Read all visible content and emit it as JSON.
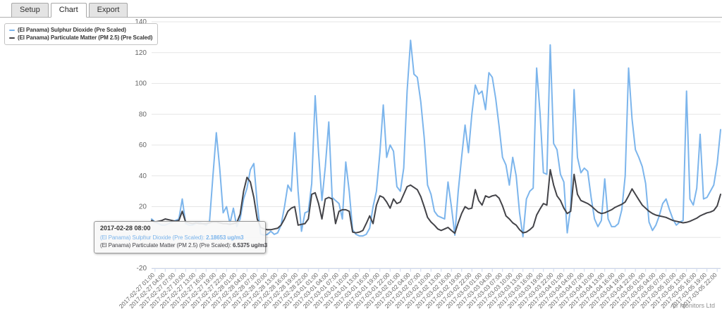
{
  "tabs": {
    "items": [
      {
        "label": "Setup",
        "active": false
      },
      {
        "label": "Chart",
        "active": true
      },
      {
        "label": "Export",
        "active": false
      }
    ]
  },
  "legend": {
    "items": [
      {
        "label": "(El Panama) Sulphur Dioxide (Pre Scaled)",
        "color": "#7cb5ec"
      },
      {
        "label": "(El Panama) Particulate Matter (PM 2.5) (Pre Scaled)",
        "color": "#434348"
      }
    ]
  },
  "tooltip": {
    "header": "2017-02-28 08:00",
    "rows": [
      {
        "label": "(El Panama) Sulphur Dioxide (Pre Scaled): ",
        "value": "2.18653 ug/m3",
        "color": "#7cb5ec"
      },
      {
        "label": "(El Panama) Particulate Matter (PM 2.5) (Pre Scaled): ",
        "value": "6.5375 ug/m3",
        "color": "#434348"
      }
    ]
  },
  "credits": {
    "text": "Air Monitors Ltd"
  },
  "chart_data": {
    "type": "line",
    "x_start": "2017-02-27 00:00",
    "x_interval_hours": 1,
    "ylim": [
      -20,
      140
    ],
    "ytick_step": 20,
    "grid": true,
    "legend_position": "top-left",
    "colors": {
      "gridline": "#e6e6e6",
      "axis_line": "#ccd6eb",
      "axis_label": "#666666"
    },
    "x_tick_labels": [
      "2017-02-27 01:00",
      "2017-02-27 04:00",
      "2017-02-27 07:00",
      "2017-02-27 10:00",
      "2017-02-27 13:00",
      "2017-02-27 16:00",
      "2017-02-27 19:00",
      "2017-02-27 22:00",
      "2017-02-28 01:00",
      "2017-02-28 04:00",
      "2017-02-28 07:00",
      "2017-02-28 10:00",
      "2017-02-28 13:00",
      "2017-02-28 16:00",
      "2017-02-28 19:00",
      "2017-02-28 22:00",
      "2017-03-01 01:00",
      "2017-03-01 04:00",
      "2017-03-01 07:00",
      "2017-03-01 10:00",
      "2017-03-01 13:00",
      "2017-03-01 16:00",
      "2017-03-01 19:00",
      "2017-03-01 22:00",
      "2017-03-02 01:00",
      "2017-03-02 04:00",
      "2017-03-02 07:00",
      "2017-03-02 10:00",
      "2017-03-02 13:00",
      "2017-03-02 16:00",
      "2017-03-02 19:00",
      "2017-03-02 22:00",
      "2017-03-03 01:00",
      "2017-03-03 04:00",
      "2017-03-03 07:00",
      "2017-03-03 10:00",
      "2017-03-03 13:00",
      "2017-03-03 16:00",
      "2017-03-03 19:00",
      "2017-03-03 22:00",
      "2017-03-04 01:00",
      "2017-03-04 04:00",
      "2017-03-04 07:00",
      "2017-03-04 10:00",
      "2017-03-04 13:00",
      "2017-03-04 16:00",
      "2017-03-04 19:00",
      "2017-03-04 22:00",
      "2017-03-05 01:00",
      "2017-03-05 04:00",
      "2017-03-05 07:00",
      "2017-03-05 10:00",
      "2017-03-05 13:00",
      "2017-03-05 16:00",
      "2017-03-05 19:00",
      "2017-03-05 22:00"
    ],
    "series": [
      {
        "name": "(El Panama) Sulphur Dioxide (Pre Scaled)",
        "color": "#7cb5ec",
        "unit": "ug/m3",
        "values": [
          12,
          10,
          9,
          8,
          8,
          9,
          10,
          11,
          12,
          25,
          9,
          8,
          8,
          9,
          10,
          9,
          8,
          10,
          40,
          68,
          45,
          16,
          20,
          9,
          19,
          7,
          12,
          25,
          32,
          44,
          48,
          22,
          2.2,
          1.5,
          2,
          4,
          2,
          3,
          8,
          20,
          34,
          30,
          68,
          30,
          4,
          16,
          17,
          35,
          92,
          55,
          24,
          46,
          75,
          26,
          24,
          22,
          12,
          49,
          30,
          5,
          2,
          1,
          1,
          2,
          6,
          20,
          30,
          55,
          86,
          52,
          60,
          56,
          33,
          30,
          45,
          95,
          128,
          106,
          104,
          88,
          65,
          34,
          28,
          17,
          14,
          13,
          12,
          36,
          20,
          1.5,
          30,
          52,
          73,
          55,
          80,
          99,
          93,
          95,
          83,
          107,
          104,
          90,
          72,
          52,
          47,
          34,
          52,
          40,
          16,
          0.5,
          25,
          30,
          32,
          110,
          81,
          42,
          41,
          125,
          61,
          57,
          41,
          36,
          3,
          20,
          96,
          52,
          42,
          45,
          43,
          26,
          12,
          7,
          11,
          38,
          12,
          7,
          7,
          9,
          18,
          40,
          110,
          77,
          57,
          52,
          46,
          35,
          10,
          4.5,
          8,
          14,
          22,
          25,
          18,
          12,
          8,
          10,
          11,
          95,
          25,
          21,
          32,
          67,
          25,
          26,
          30,
          34,
          48,
          70
        ]
      },
      {
        "name": "(El Panama) Particulate Matter (PM 2.5) (Pre Scaled)",
        "color": "#434348",
        "unit": "ug/m3",
        "values": [
          11,
          10,
          10.5,
          11,
          12,
          11.5,
          11,
          10.5,
          11,
          17,
          10,
          9.5,
          9,
          9.5,
          9,
          9,
          9,
          9.5,
          10,
          10,
          9.5,
          9,
          9,
          8.5,
          9,
          9.5,
          15,
          30,
          39,
          36,
          26,
          12,
          6.5,
          5.5,
          5,
          5,
          5.5,
          6,
          8,
          12,
          17,
          19,
          20,
          8,
          8.5,
          9,
          12,
          28,
          29,
          22,
          12,
          25,
          26,
          25,
          9,
          17,
          18,
          18,
          17,
          3.5,
          3,
          3.5,
          4.5,
          9,
          14,
          9,
          21,
          27,
          26,
          23,
          19,
          25,
          22,
          23,
          28,
          33,
          34,
          32.5,
          31,
          26.5,
          20,
          13,
          10,
          8,
          5.5,
          4.5,
          5.5,
          6.5,
          4.5,
          2.7,
          9.5,
          15.5,
          20,
          18.5,
          19,
          31,
          24,
          21,
          27,
          26,
          27,
          27.5,
          25.5,
          20.5,
          14,
          12,
          9.5,
          8,
          5,
          3,
          3.5,
          5,
          7,
          14.5,
          18.5,
          22,
          21,
          44,
          34,
          27,
          24,
          19,
          15.5,
          17,
          41,
          28,
          24,
          23,
          22,
          20.5,
          18.5,
          16.5,
          15.5,
          16,
          17,
          18,
          19.5,
          20.5,
          21.5,
          23,
          27,
          31.5,
          28,
          24.5,
          21,
          19,
          17,
          15.5,
          14.5,
          14,
          13.5,
          13,
          12,
          11,
          10.5,
          10,
          9.5,
          9.8,
          10.5,
          11.5,
          12.5,
          14,
          15,
          16,
          16.5,
          17.5,
          20.5,
          28
        ]
      }
    ]
  }
}
